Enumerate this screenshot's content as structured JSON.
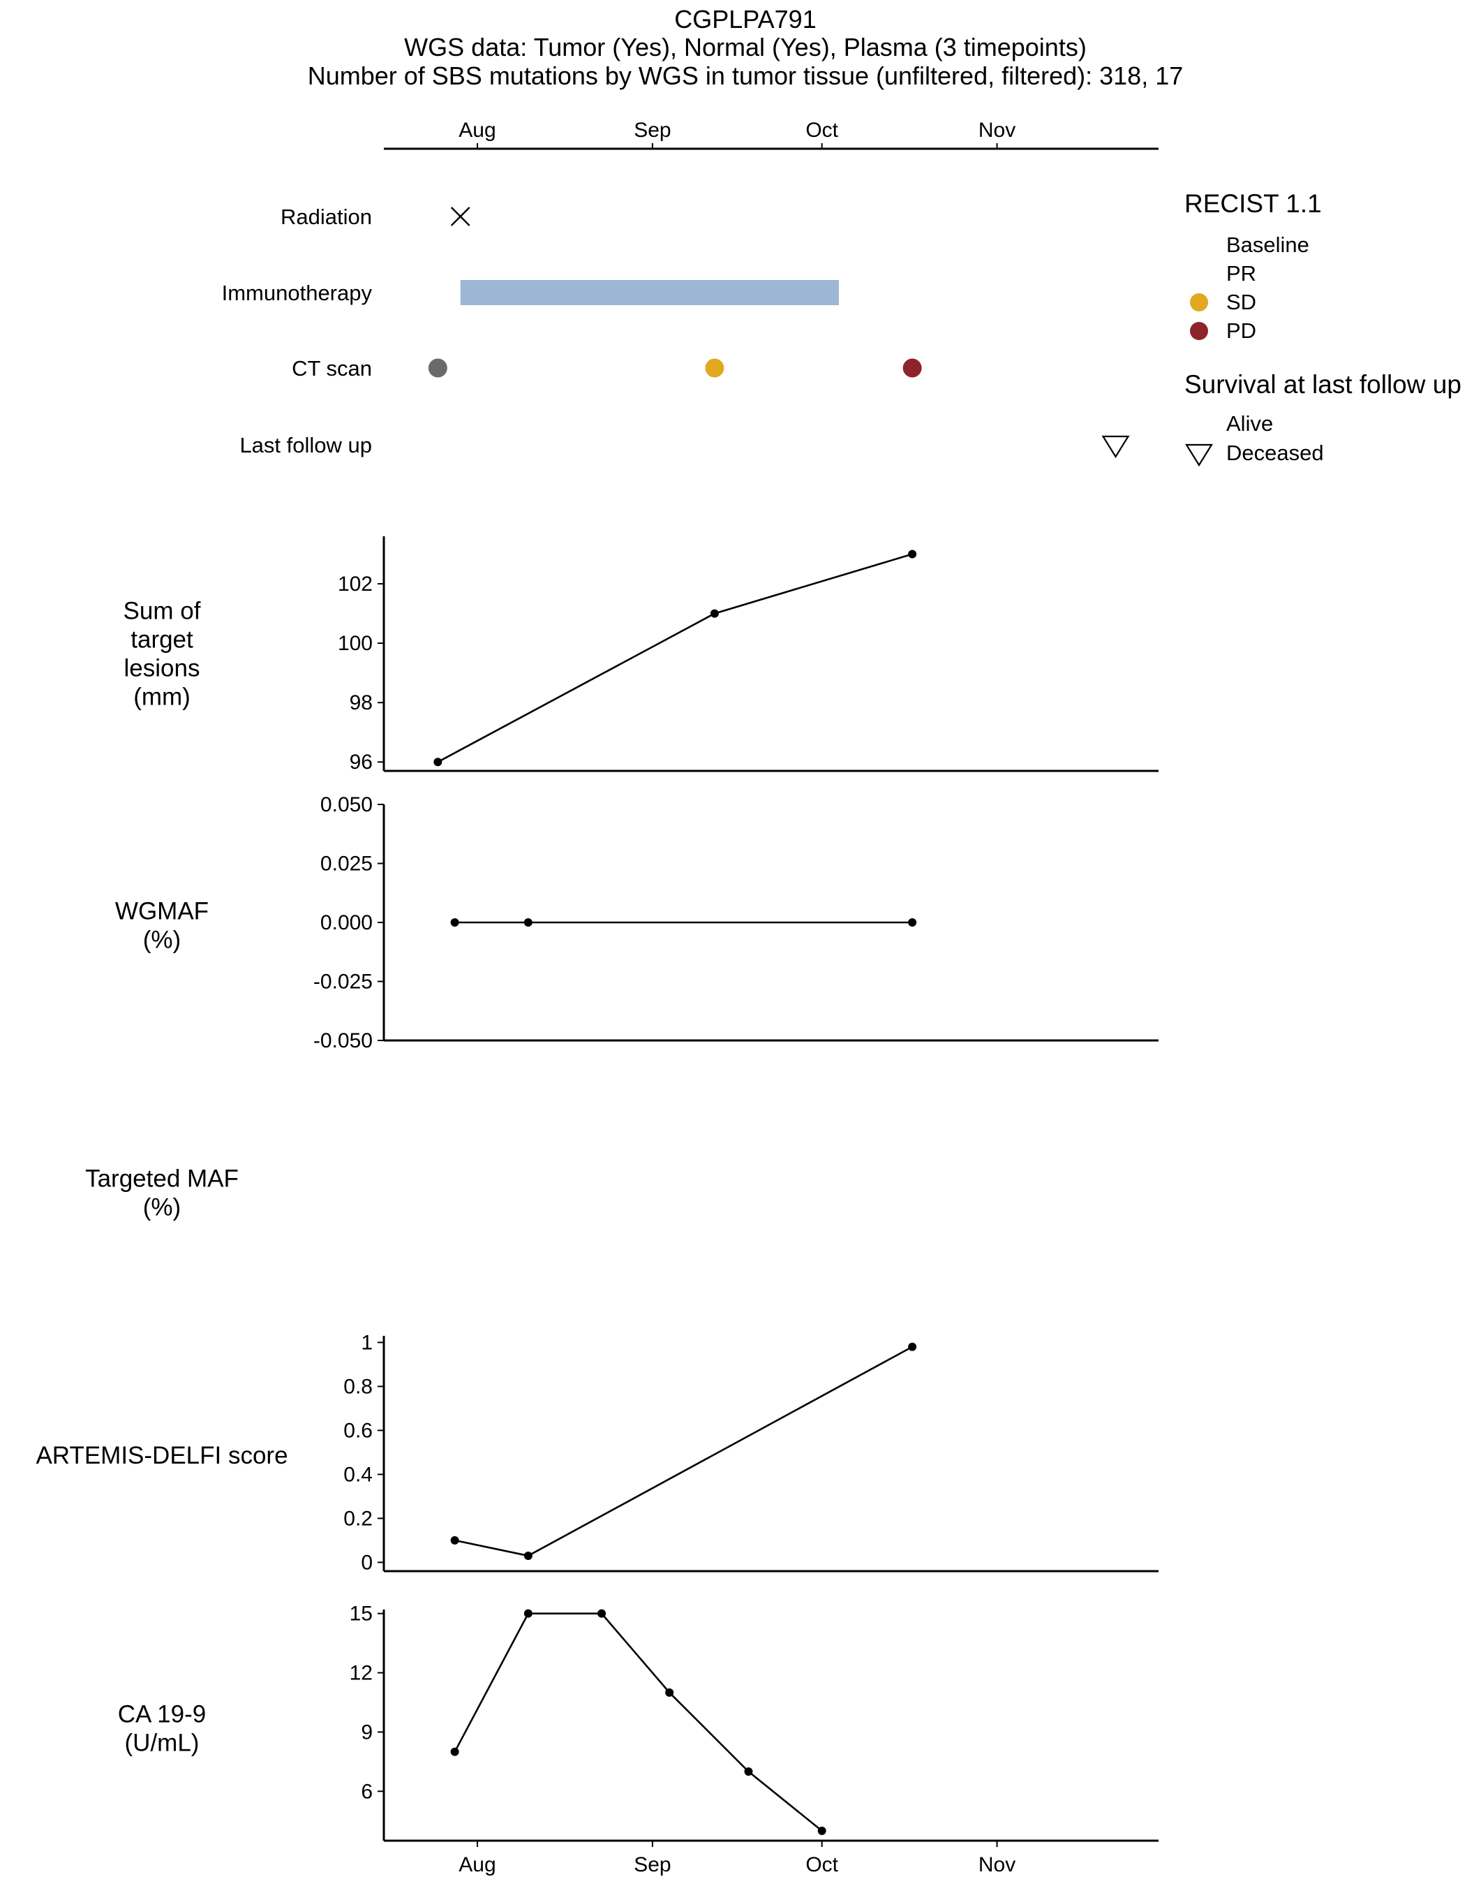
{
  "header": {
    "line1": "CGPLPA791",
    "line2": "WGS data: Tumor (Yes), Normal (Yes), Plasma (3 timepoints)",
    "line3": "Number of SBS mutations by WGS in tumor tissue (unfiltered, filtered): 318, 17"
  },
  "colors": {
    "baseline": "#6a6a6a",
    "sd": "#e1a820",
    "pd": "#8e2329",
    "immunotherapy": "#9db6d4",
    "line": "#000000"
  },
  "chart_data": [
    {
      "type": "timeline",
      "x_ticks": [
        "Aug",
        "Sep",
        "Oct",
        "Nov"
      ],
      "tracks": [
        {
          "name": "Radiation",
          "events": [
            {
              "date": "2021-07-29",
              "marker": "cross"
            }
          ]
        },
        {
          "name": "Immunotherapy",
          "intervals": [
            {
              "start": "2021-07-29",
              "end": "2021-10-04"
            }
          ]
        },
        {
          "name": "CT scan",
          "events": [
            {
              "date": "2021-07-25",
              "response": "Baseline"
            },
            {
              "date": "2021-09-12",
              "response": "SD"
            },
            {
              "date": "2021-10-17",
              "response": "PD"
            }
          ]
        },
        {
          "name": "Last follow up",
          "events": [
            {
              "date": "2021-11-22",
              "status": "Deceased"
            }
          ]
        }
      ],
      "legends": [
        {
          "title": "RECIST 1.1",
          "items": [
            "Baseline",
            "PR",
            "SD",
            "PD"
          ]
        },
        {
          "title": "Survival at last follow up",
          "items": [
            "Alive",
            "Deceased"
          ]
        }
      ]
    },
    {
      "type": "line",
      "ylabel": [
        "Sum of",
        "target",
        "lesions",
        "(mm)"
      ],
      "ylim": [
        95.7,
        103.6
      ],
      "y_ticks": [
        "96",
        "98",
        "100",
        "102"
      ],
      "x": [
        "2021-07-25",
        "2021-09-12",
        "2021-10-17"
      ],
      "values": [
        96,
        101,
        103
      ]
    },
    {
      "type": "line",
      "ylabel": [
        "WGMAF",
        "(%)"
      ],
      "ylim": [
        -0.05,
        0.05
      ],
      "y_ticks": [
        "-0.050",
        "-0.025",
        "0.000",
        "0.025",
        "0.050"
      ],
      "x": [
        "2021-07-28",
        "2021-08-10",
        "2021-10-17"
      ],
      "values": [
        0,
        0,
        0
      ]
    },
    {
      "type": "line",
      "ylabel": [
        "Targeted MAF",
        "(%)"
      ],
      "x": [],
      "values": []
    },
    {
      "type": "line",
      "ylabel": [
        "ARTEMIS-DELFI score"
      ],
      "ylim": [
        -0.04,
        1.03
      ],
      "y_ticks": [
        "0",
        "0.2",
        "0.4",
        "0.6",
        "0.8",
        "1"
      ],
      "x": [
        "2021-07-28",
        "2021-08-10",
        "2021-10-17"
      ],
      "values": [
        0.1,
        0.03,
        0.98
      ]
    },
    {
      "type": "line",
      "ylabel": [
        "CA 19-9",
        "(U/mL)"
      ],
      "ylim": [
        3.5,
        15.2
      ],
      "y_ticks": [
        "6",
        "9",
        "12",
        "15"
      ],
      "x": [
        "2021-07-28",
        "2021-08-10",
        "2021-08-23",
        "2021-09-04",
        "2021-09-18",
        "2021-10-01"
      ],
      "values": [
        8,
        15,
        15,
        11,
        7,
        4
      ],
      "x_ticks": [
        "Aug",
        "Sep",
        "Oct",
        "Nov"
      ]
    }
  ]
}
